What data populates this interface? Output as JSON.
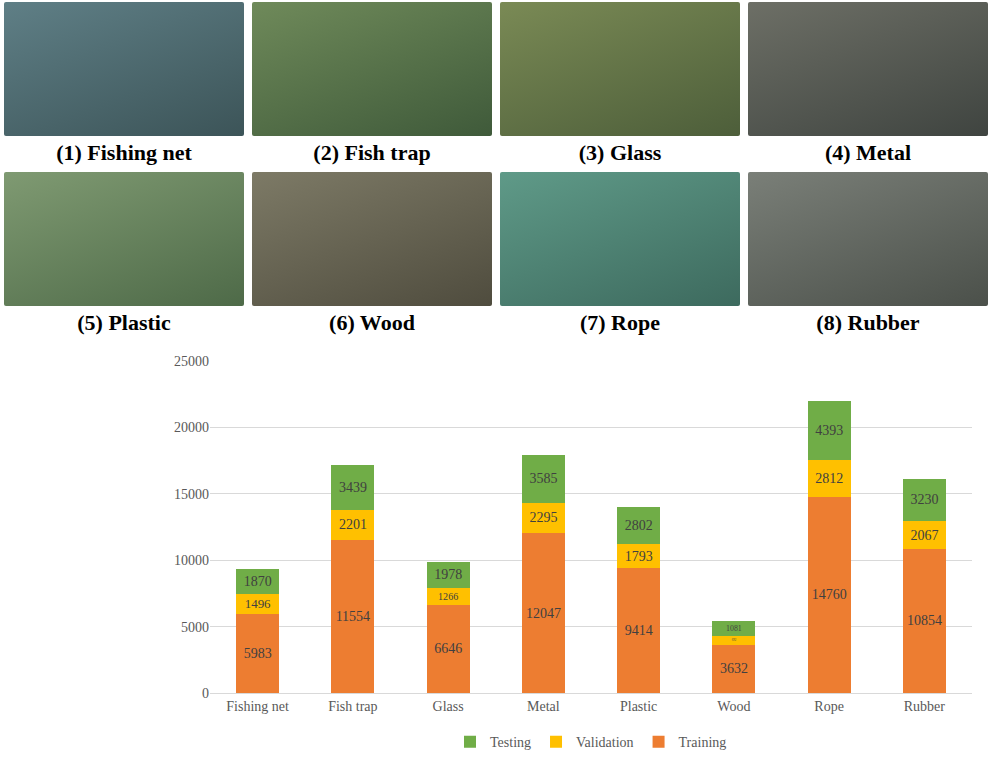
{
  "images": [
    {
      "label": "(1) Fishing net"
    },
    {
      "label": "(2) Fish trap"
    },
    {
      "label": "(3) Glass"
    },
    {
      "label": "(4) Metal"
    },
    {
      "label": "(5) Plastic"
    },
    {
      "label": "(6) Wood"
    },
    {
      "label": "(7) Rope"
    },
    {
      "label": "(8) Rubber"
    }
  ],
  "chart_data": {
    "type": "bar",
    "stacked": true,
    "categories": [
      "Fishing net",
      "Fish trap",
      "Glass",
      "Metal",
      "Plastic",
      "Wood",
      "Rope",
      "Rubber"
    ],
    "series": [
      {
        "name": "Training",
        "color": "#ED7D31",
        "values": [
          5983,
          11554,
          6646,
          12047,
          9414,
          3632,
          14760,
          10854
        ]
      },
      {
        "name": "Validation",
        "color": "#FFC000",
        "values": [
          1496,
          2201,
          1266,
          2295,
          1793,
          692,
          2812,
          2067
        ]
      },
      {
        "name": "Testing",
        "color": "#70AD47",
        "values": [
          1870,
          3439,
          1978,
          3585,
          2802,
          1081,
          4393,
          3230
        ]
      }
    ],
    "ylim": [
      0,
      25000
    ],
    "yticks": [
      0,
      5000,
      10000,
      15000,
      20000,
      25000
    ],
    "grid": true,
    "legend": "bottom",
    "data_labels": true
  }
}
